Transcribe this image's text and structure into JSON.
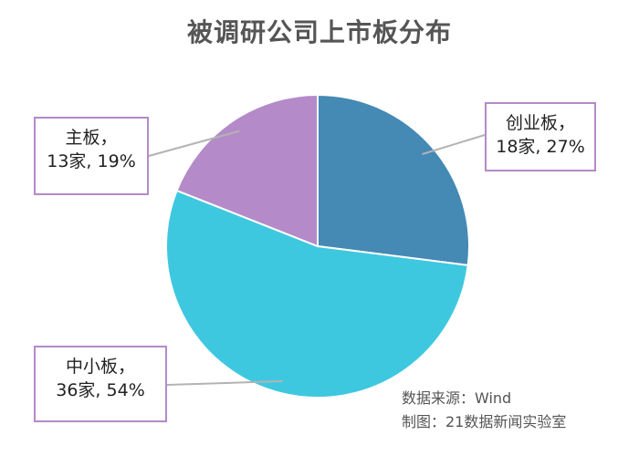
{
  "chart_data": {
    "type": "pie",
    "title": "被调研公司上市板分布",
    "slices": [
      {
        "name": "创业板",
        "count": 18,
        "count_label": "18家",
        "percent": 27,
        "percent_label": "27%",
        "color": "#4589b5"
      },
      {
        "name": "中小板",
        "count": 36,
        "count_label": "36家",
        "percent": 54,
        "percent_label": "54%",
        "color": "#3ec8e0"
      },
      {
        "name": "主板",
        "count": 13,
        "count_label": "13家",
        "percent": 19,
        "percent_label": "19%",
        "color": "#b48ac8"
      }
    ],
    "label_separator": "，",
    "value_separator": ", ",
    "label_border_color": "#b48ac8",
    "leader_line_color": "#b3b3b3",
    "slice_border_color": "#ffffff"
  },
  "source": {
    "data_source": "数据来源：Wind",
    "made_by": "制图：21数据新闻实验室"
  }
}
